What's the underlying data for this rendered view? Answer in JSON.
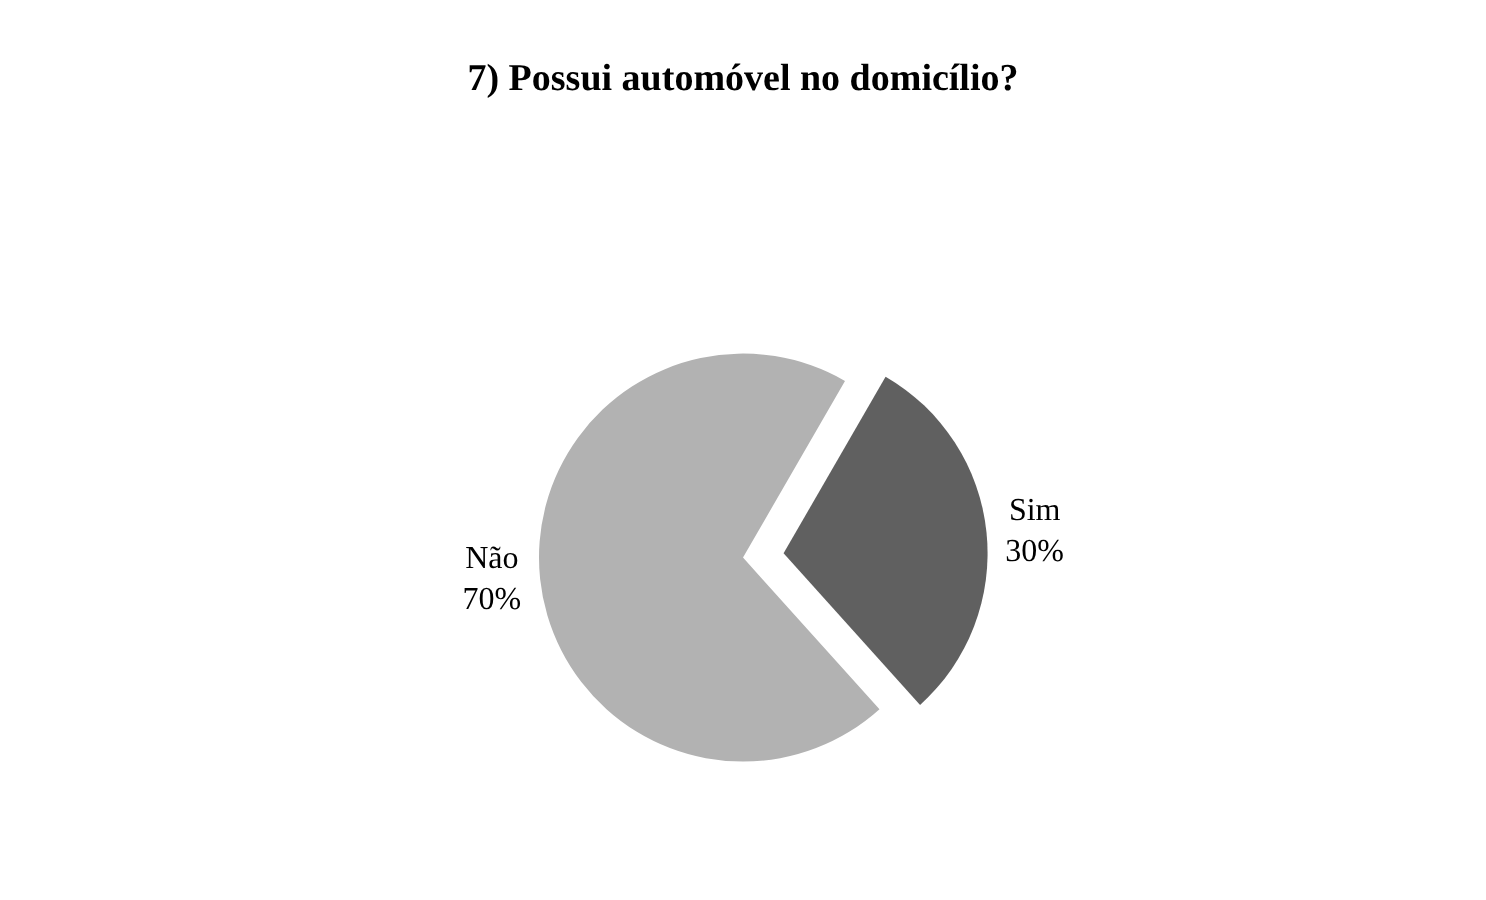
{
  "chart_data": {
    "type": "pie",
    "title": "7) Possui automóvel no domicílio?",
    "categories": [
      "Sim",
      "Não"
    ],
    "values": [
      30,
      70
    ],
    "colors": [
      "#606060",
      "#b2b2b2"
    ],
    "value_labels": [
      "30%",
      "70%"
    ],
    "legend": false
  }
}
